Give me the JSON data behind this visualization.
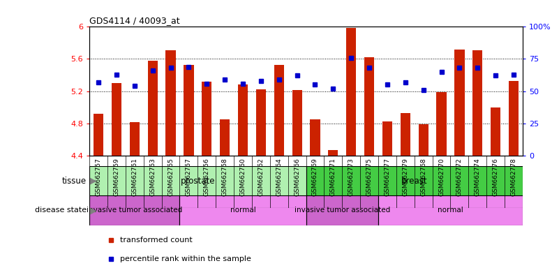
{
  "title": "GDS4114 / 40093_at",
  "samples": [
    "GSM662757",
    "GSM662759",
    "GSM662761",
    "GSM662763",
    "GSM662765",
    "GSM662767",
    "GSM662756",
    "GSM662758",
    "GSM662760",
    "GSM662762",
    "GSM662764",
    "GSM662766",
    "GSM662769",
    "GSM662771",
    "GSM662773",
    "GSM662775",
    "GSM662777",
    "GSM662779",
    "GSM662768",
    "GSM662770",
    "GSM662772",
    "GSM662774",
    "GSM662776",
    "GSM662778"
  ],
  "transformed_count": [
    4.92,
    5.3,
    4.81,
    5.58,
    5.71,
    5.53,
    5.32,
    4.85,
    5.28,
    5.22,
    5.53,
    5.21,
    4.85,
    4.47,
    5.99,
    5.62,
    4.82,
    4.93,
    4.79,
    5.19,
    5.72,
    5.71,
    5.0,
    5.33
  ],
  "percentile_rank": [
    57,
    63,
    54,
    66,
    68,
    69,
    56,
    59,
    56,
    58,
    59,
    62,
    55,
    52,
    76,
    68,
    55,
    57,
    51,
    65,
    68,
    68,
    62,
    63
  ],
  "ylim_left": [
    4.4,
    6.0
  ],
  "ylim_right": [
    0,
    100
  ],
  "yticks_left": [
    4.4,
    4.8,
    5.2,
    5.6,
    6.0
  ],
  "yticks_right": [
    0,
    25,
    50,
    75,
    100
  ],
  "ytick_labels_left": [
    "4.4",
    "4.8",
    "5.2",
    "5.6",
    "6"
  ],
  "ytick_labels_right": [
    "0",
    "25",
    "50",
    "75",
    "100%"
  ],
  "bar_color": "#cc2200",
  "dot_color": "#0000cc",
  "tissue_groups": [
    {
      "label": "prostate",
      "start": 0,
      "end": 12,
      "color": "#b0f0b0"
    },
    {
      "label": "breast",
      "start": 12,
      "end": 24,
      "color": "#44cc44"
    }
  ],
  "disease_groups": [
    {
      "label": "invasive tumor associated",
      "start": 0,
      "end": 5,
      "color": "#cc66cc"
    },
    {
      "label": "normal",
      "start": 5,
      "end": 12,
      "color": "#ee88ee"
    },
    {
      "label": "invasive tumor associated",
      "start": 12,
      "end": 16,
      "color": "#cc66cc"
    },
    {
      "label": "normal",
      "start": 16,
      "end": 24,
      "color": "#ee88ee"
    }
  ],
  "legend_items": [
    {
      "label": "transformed count",
      "color": "#cc2200"
    },
    {
      "label": "percentile rank within the sample",
      "color": "#0000cc"
    }
  ],
  "grid_color": "black",
  "grid_style": "dotted",
  "bg_color": "#e8e8e8"
}
